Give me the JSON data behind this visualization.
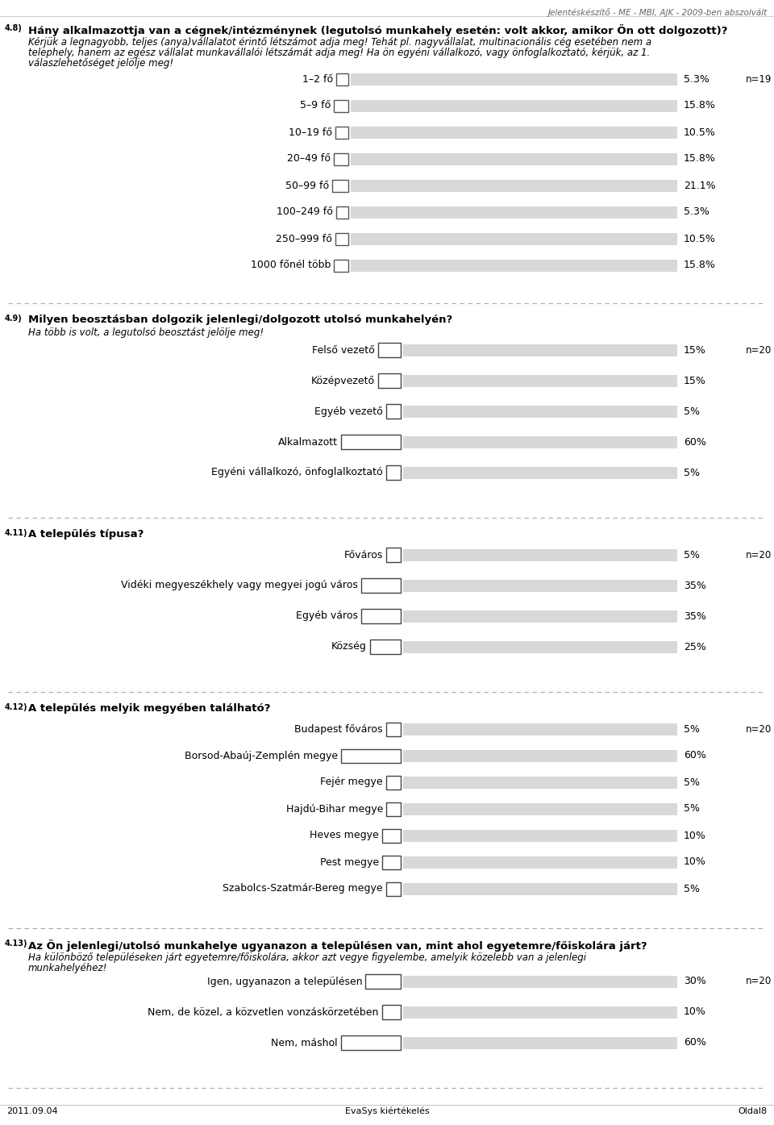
{
  "header_text": "Jelentéskészítő - ME - MBI, AJK - 2009-ben abszolvált",
  "footer_left": "2011.09.04",
  "footer_center": "EvaSys kiértékelés",
  "footer_right": "Oldal8",
  "q48_num_super": "4.8)",
  "q48_title": "Hány alkalmazottja van a cégnek/intézménynek (legutolsó munkahely esetén: volt akkor, amikor Ön ott dolgozott)?",
  "q48_subtitle1": "Kérjük a legnagyobb, teljes (anya)vállalatot érintő létszámot adja meg! Tehát pl. nagyvállalat, multinacionális cég esetében nem a",
  "q48_subtitle2": "telephely, hanem az egész vállalat munkavállalói létszámát adja meg! Ha ön egyéni vállalkozó, vagy önfoglalkoztató, kérjük, az 1.",
  "q48_subtitle3": "válaszlehetőséget jelölje meg!",
  "q48_n": "n=19",
  "q48_bars": [
    {
      "label": "1–2 fő",
      "value": 5.3,
      "pct": "5.3%"
    },
    {
      "label": "5–9 fő",
      "value": 15.8,
      "pct": "15.8%"
    },
    {
      "label": "10–19 fő",
      "value": 10.5,
      "pct": "10.5%"
    },
    {
      "label": "20–49 fő",
      "value": 15.8,
      "pct": "15.8%"
    },
    {
      "label": "50–99 fő",
      "value": 21.1,
      "pct": "21.1%"
    },
    {
      "label": "100–249 fő",
      "value": 5.3,
      "pct": "5.3%"
    },
    {
      "label": "250–999 fő",
      "value": 10.5,
      "pct": "10.5%"
    },
    {
      "label": "1000 főnél több",
      "value": 15.8,
      "pct": "15.8%"
    }
  ],
  "q49_num_super": "4.9)",
  "q49_title": "Milyen beosztásban dolgozik jelenlegi/dolgozott utolsó munkahelyén?",
  "q49_subtitle": "Ha több is volt, a legutolsó beosztást jelölje meg!",
  "q49_n": "n=20",
  "q49_bars": [
    {
      "label": "Felső vezető",
      "value": 15,
      "pct": "15%"
    },
    {
      "label": "Középvezető",
      "value": 15,
      "pct": "15%"
    },
    {
      "label": "Egyéb vezető",
      "value": 5,
      "pct": "5%"
    },
    {
      "label": "Alkalmazott",
      "value": 60,
      "pct": "60%"
    },
    {
      "label": "Egyéni vállalkozó, önfoglalkoztató",
      "value": 5,
      "pct": "5%"
    }
  ],
  "q411_num_super": "4.11)",
  "q411_title": "A település típusa?",
  "q411_n": "n=20",
  "q411_bars": [
    {
      "label": "Főváros",
      "value": 5,
      "pct": "5%"
    },
    {
      "label": "Vidéki megyeszékhely vagy megyei jogú város",
      "value": 35,
      "pct": "35%"
    },
    {
      "label": "Egyéb város",
      "value": 35,
      "pct": "35%"
    },
    {
      "label": "Község",
      "value": 25,
      "pct": "25%"
    }
  ],
  "q412_num_super": "4.12)",
  "q412_title": "A település melyik megyében található?",
  "q412_n": "n=20",
  "q412_bars": [
    {
      "label": "Budapest főváros",
      "value": 5,
      "pct": "5%"
    },
    {
      "label": "Borsod-Abaúj-Zemplén megye",
      "value": 60,
      "pct": "60%"
    },
    {
      "label": "Fejér megye",
      "value": 5,
      "pct": "5%"
    },
    {
      "label": "Hajdú-Bihar megye",
      "value": 5,
      "pct": "5%"
    },
    {
      "label": "Heves megye",
      "value": 10,
      "pct": "10%"
    },
    {
      "label": "Pest megye",
      "value": 10,
      "pct": "10%"
    },
    {
      "label": "Szabolcs-Szatmár-Bereg megye",
      "value": 5,
      "pct": "5%"
    }
  ],
  "q413_num_super": "4.13)",
  "q413_title": "Az Ön jelenlegi/utolsó munkahelye ugyanazon a településen van, mint ahol egyetemre/főiskolára járt?",
  "q413_subtitle1": "Ha különböző településeken járt egyetemre/főiskolára, akkor azt vegye figyelembe, amelyik közelebb van a jelenlegi",
  "q413_subtitle2": "munkahelyéhez!",
  "q413_n": "n=20",
  "q413_bars": [
    {
      "label": "Igen, ugyanazon a településen",
      "value": 30,
      "pct": "30%"
    },
    {
      "label": "Nem, de közel, a közvetlen vonzáskörzetében",
      "value": 10,
      "pct": "10%"
    },
    {
      "label": "Nem, máshol",
      "value": 60,
      "pct": "60%"
    }
  ],
  "bar_bg_color": "#d8d8d8",
  "checkbox_color": "#ffffff",
  "text_color": "#000000",
  "header_color": "#666666",
  "dash_color": "#aaaaaa"
}
